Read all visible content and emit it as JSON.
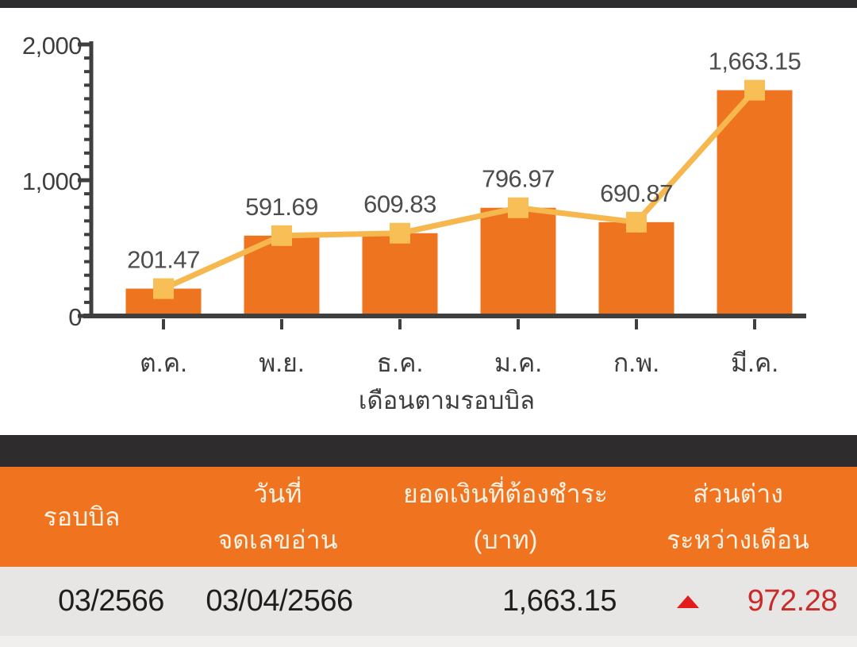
{
  "chart_data": {
    "type": "bar",
    "overlay": "line",
    "categories": [
      "ต.ค.",
      "พ.ย.",
      "ธ.ค.",
      "ม.ค.",
      "ก.พ.",
      "มี.ค."
    ],
    "values": [
      201.47,
      591.69,
      609.83,
      796.97,
      690.87,
      1663.15
    ],
    "value_labels": [
      "201.47",
      "591.69",
      "609.83",
      "796.97",
      "690.87",
      "1,663.15"
    ],
    "title": "",
    "xlabel": "เดือนตามรอบบิล",
    "ylabel": "",
    "ylim": [
      0,
      2000
    ],
    "y_tick_labels": [
      "0",
      "1,000",
      "2,000"
    ],
    "y_major_step": 1000,
    "y_minor_step": 100,
    "grid": false,
    "legend": "none",
    "colors": {
      "bar": "#ee7420",
      "line": "#f6b74f",
      "marker": "#f9bf57",
      "axis": "#3f3f3f",
      "value_label": "#4d4d4d",
      "tick_label": "#3e3e3e"
    }
  },
  "table": {
    "headers": [
      {
        "lines": [
          "รอบบิล"
        ]
      },
      {
        "lines": [
          "วันที่",
          "จดเลขอ่าน"
        ]
      },
      {
        "lines": [
          "ยอดเงินที่ต้องชำระ",
          "(บาท)"
        ]
      },
      {
        "lines": [
          "ส่วนต่าง",
          "ระหว่างเดือน"
        ]
      }
    ],
    "row": {
      "bill_cycle": "03/2566",
      "reading_date": "03/04/2566",
      "amount": "1,663.15",
      "diff_value": "972.28",
      "diff_direction": "up"
    },
    "colors": {
      "header_bg": "#f0731f",
      "header_text": "#faf2e4",
      "row_bg": "#e7e6e4",
      "diff_text": "#c92a2a",
      "diff_arrow": "#e31b1b",
      "divider": "#2e2c2c"
    }
  }
}
